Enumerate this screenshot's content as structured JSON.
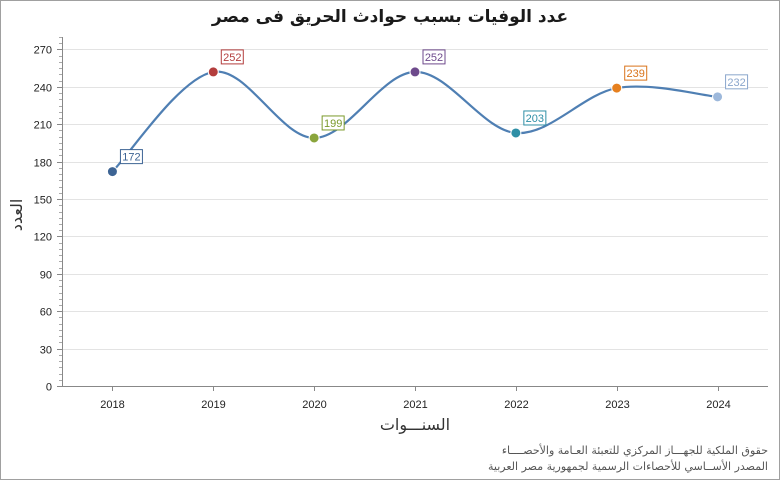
{
  "chart_data": {
    "type": "line",
    "title": "عدد الوفيات بسبب حوادث الحريق فى مصر",
    "xlabel": "السنـــوات",
    "ylabel": "العدد",
    "categories": [
      "2018",
      "2019",
      "2020",
      "2021",
      "2022",
      "2023",
      "2024"
    ],
    "series": [
      {
        "name": "عدد الوفيات",
        "values": [
          172,
          252,
          199,
          252,
          203,
          239,
          232
        ]
      }
    ],
    "ylim": [
      0,
      280
    ],
    "yticks": [
      0,
      30,
      60,
      90,
      120,
      150,
      180,
      210,
      240,
      270
    ],
    "grid": true,
    "smooth": true,
    "line_color": "#4f7fb3",
    "point_colors": [
      "#3d6494",
      "#b33d3d",
      "#8aa53c",
      "#6e4a8c",
      "#2e8fa6",
      "#e6801f",
      "#9db8db"
    ],
    "label_colors": [
      "#3d6494",
      "#b33d3d",
      "#7a9a2a",
      "#6e4a8c",
      "#2e8fa6",
      "#d9731a",
      "#8aa6cc"
    ]
  },
  "footer": {
    "line1": "حقوق الملكية للجهـــاز المركزي للتعبئة العـامة والأحصــــاء",
    "line2": "المصدر الأســاسي للأحصاءات الرسمية لجمهورية مصر العربية"
  }
}
